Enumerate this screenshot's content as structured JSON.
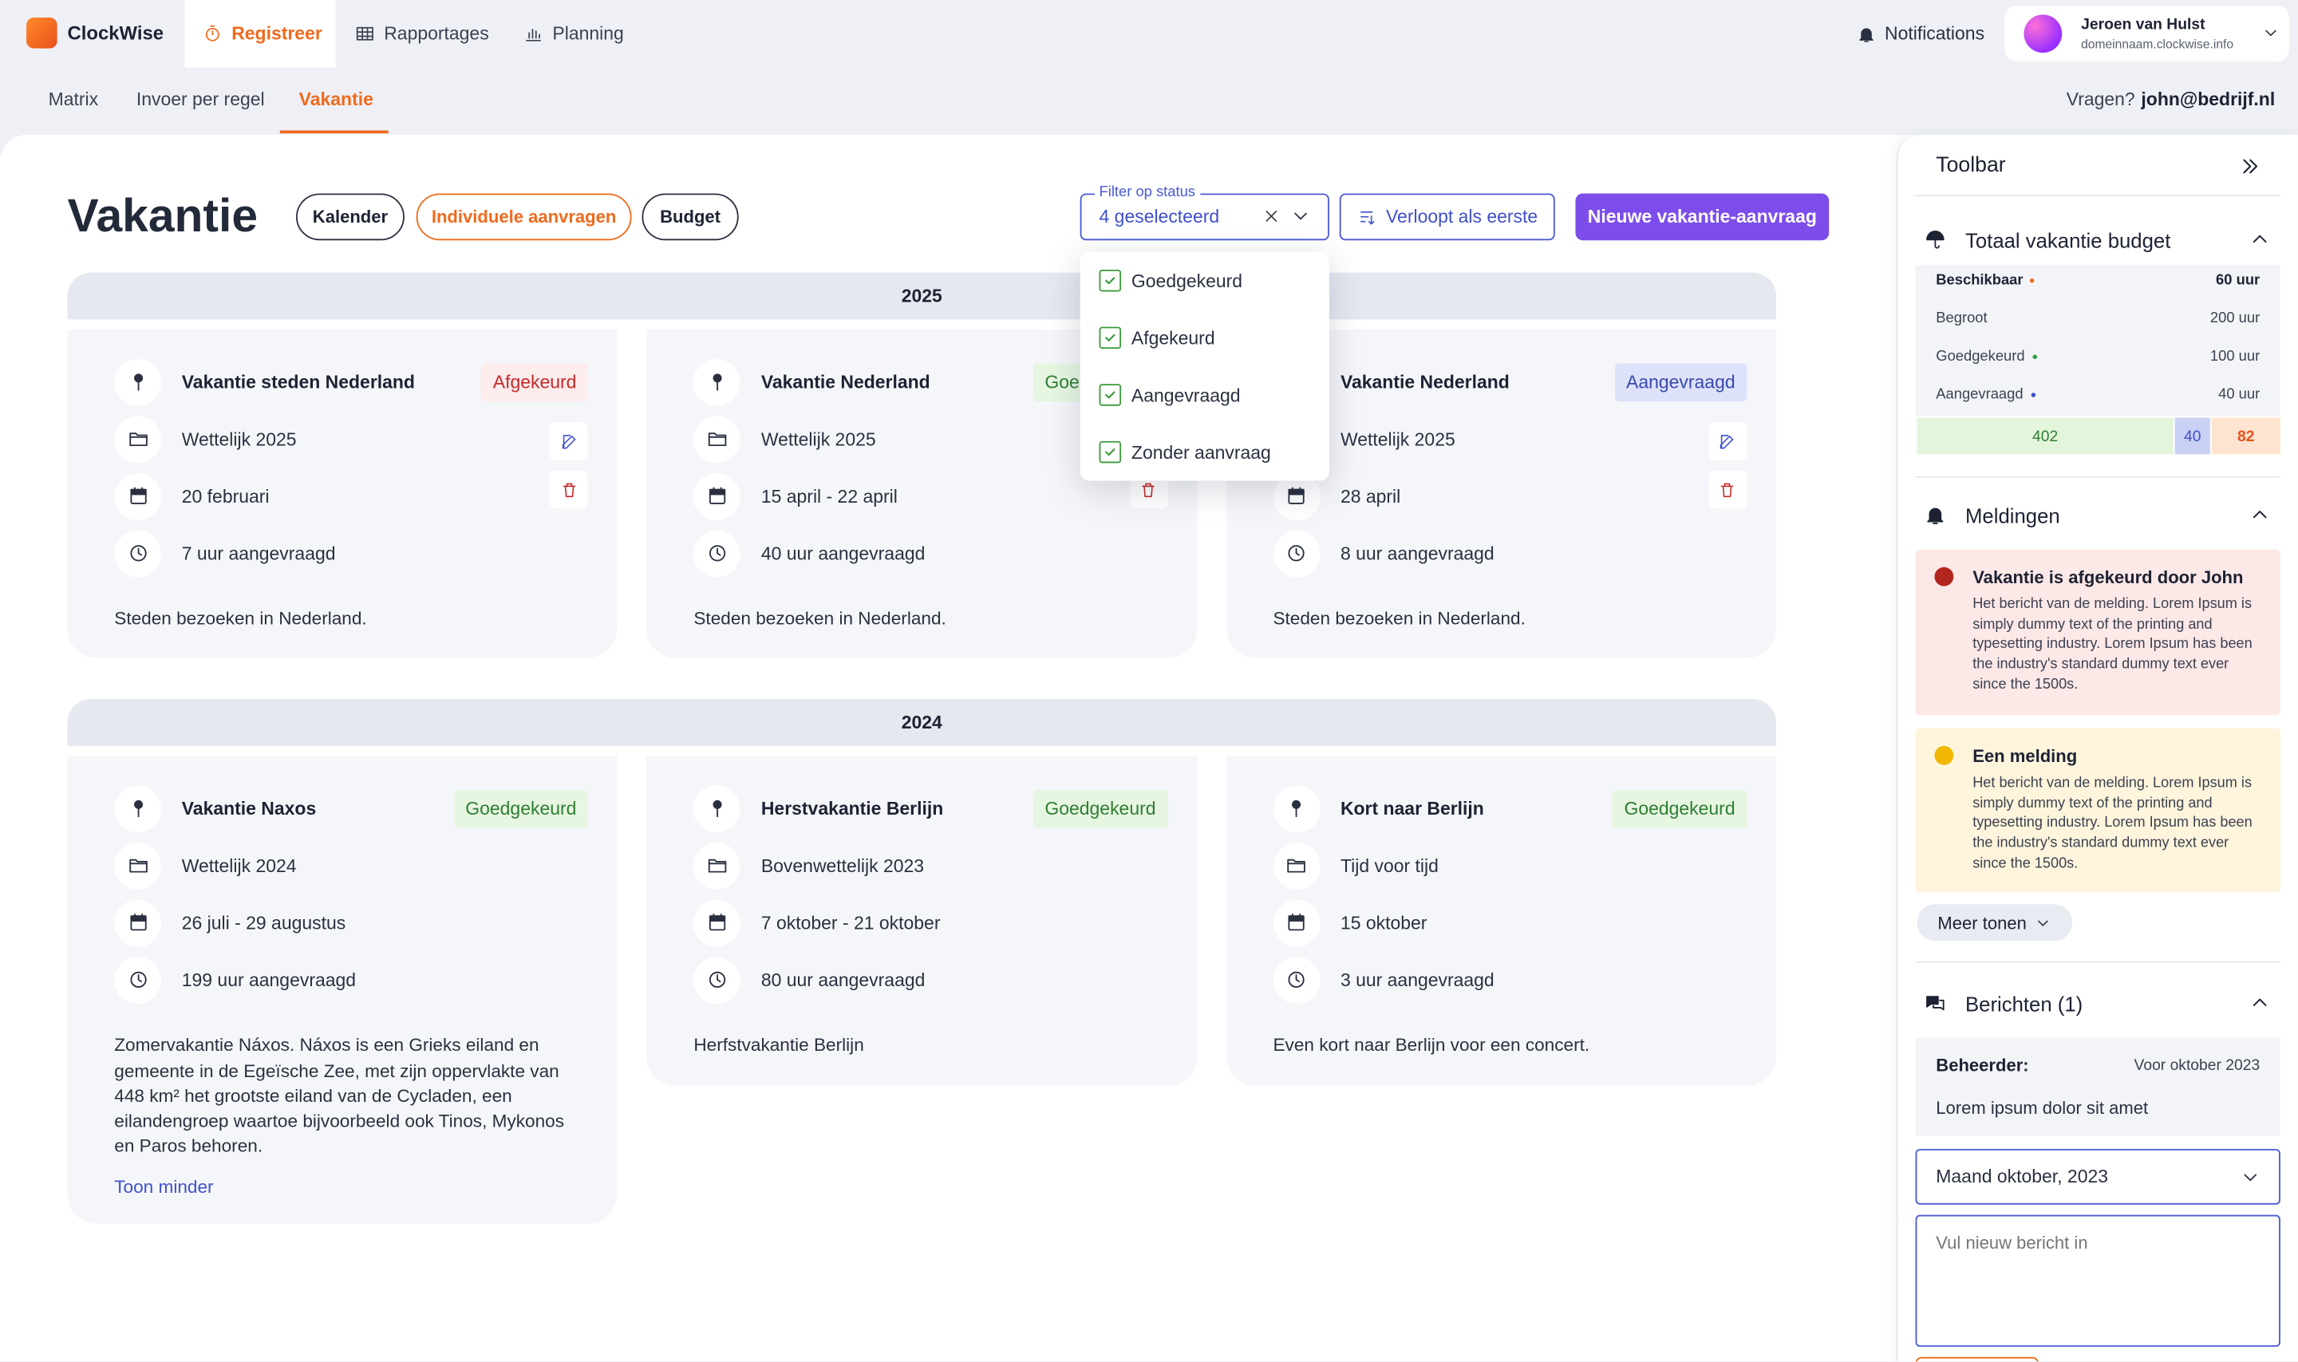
{
  "app": {
    "brand": "ClockWise",
    "nav": [
      "Registreer",
      "Rapportages",
      "Planning"
    ],
    "notifications": "Notifications",
    "user": {
      "name": "Jeroen van Hulst",
      "domain": "domeinnaam.clockwise.info"
    }
  },
  "subnav": {
    "tabs": [
      "Matrix",
      "Invoer per regel",
      "Vakantie"
    ],
    "question": "Vragen?",
    "email": "john@bedrijf.nl"
  },
  "page": {
    "title": "Vakantie",
    "views": [
      "Kalender",
      "Individuele aanvragen",
      "Budget"
    ],
    "filter": {
      "label": "Filter op status",
      "value": "4 geselecteerd",
      "options": [
        "Goedgekeurd",
        "Afgekeurd",
        "Aangevraagd",
        "Zonder aanvraag"
      ]
    },
    "sort": "Verloopt als eerste",
    "new_request": "Nieuwe vakantie-aanvraag"
  },
  "groups": [
    {
      "year": "2025",
      "cards": [
        {
          "title": "Vakantie steden Nederland",
          "status": "Afgekeurd",
          "status_color": "#c62828",
          "status_bg": "#fdecec",
          "category": "Wettelijk 2025",
          "date": "20 februari",
          "hours": "7 uur aangevraagd",
          "description": "Steden bezoeken in Nederland."
        },
        {
          "title": "Vakantie Nederland",
          "status": "Goedgekeurd",
          "status_color": "#2e7d32",
          "status_bg": "#e6f6e1",
          "category": "Wettelijk 2025",
          "date": "15 april - 22 april",
          "hours": "40 uur aangevraagd",
          "description": "Steden bezoeken in Nederland."
        },
        {
          "title": "Vakantie Nederland",
          "status": "Aangevraagd",
          "status_color": "#3949ab",
          "status_bg": "#dde2fa",
          "category": "Wettelijk 2025",
          "date": "28 april",
          "hours": "8 uur aangevraagd",
          "description": "Steden bezoeken in Nederland."
        }
      ]
    },
    {
      "year": "2024",
      "cards": [
        {
          "title": "Vakantie Naxos",
          "status": "Goedgekeurd",
          "status_color": "#2e7d32",
          "status_bg": "#e6f6e1",
          "category": "Wettelijk 2024",
          "date": "26 juli - 29 augustus",
          "hours": "199 uur aangevraagd",
          "description": "Zomervakantie Náxos. Náxos is een Grieks eiland en gemeente in de Egeïsche Zee, met zijn oppervlakte van 448 km² het grootste eiland van de Cycladen, een eilandengroep waartoe bijvoorbeeld ook Tinos, Mykonos en Paros behoren.",
          "link": "Toon minder"
        },
        {
          "title": "Herstvakantie  Berlijn",
          "status": "Goedgekeurd",
          "status_color": "#2e7d32",
          "status_bg": "#e6f6e1",
          "category": "Bovenwettelijk 2023",
          "date": "7 oktober - 21 oktober",
          "hours": "80 uur aangevraagd",
          "description": "Herfstvakantie Berlijn"
        },
        {
          "title": "Kort naar Berlijn",
          "status": "Goedgekeurd",
          "status_color": "#2e7d32",
          "status_bg": "#e6f6e1",
          "category": "Tijd voor tijd",
          "date": "15 oktober",
          "hours": "3 uur aangevraagd",
          "description": "Even kort naar Berlijn voor een concert."
        }
      ]
    }
  ],
  "toolbar": {
    "title": "Toolbar",
    "budget": {
      "title": "Totaal vakantie budget",
      "rows": [
        {
          "label": "Beschikbaar",
          "value": "60 uur",
          "dot": "#f06a1d"
        },
        {
          "label": "Begroot",
          "value": "200 uur"
        },
        {
          "label": "Goedgekeurd",
          "value": "100 uur",
          "dot": "#2e9d3a"
        },
        {
          "label": "Aangevraagd",
          "value": "40 uur",
          "dot": "#3f51c9"
        }
      ],
      "bar": [
        402,
        40,
        82
      ]
    },
    "notifications": {
      "title": "Meldingen",
      "items": [
        {
          "title": "Vakantie is afgekeurd door John",
          "body": "Het bericht van de melding. Lorem Ipsum is simply dummy text of the printing and typesetting industry. Lorem Ipsum has been the industry's standard dummy text ever since the 1500s.",
          "color": "#b3261e",
          "bg": "#fde8e8"
        },
        {
          "title": "Een melding",
          "body": "Het bericht van de melding. Lorem Ipsum is simply dummy text of the printing and typesetting industry. Lorem Ipsum has been the industry's standard dummy text ever since the 1500s.",
          "color": "#f2b705",
          "bg": "#fff5dc"
        }
      ],
      "more": "Meer tonen"
    },
    "messages": {
      "title": "Berichten (1)",
      "sender": "Beheerder:",
      "date": "Voor oktober 2023",
      "text": "Lorem ipsum dolor sit amet",
      "month": "Maand oktober, 2023",
      "placeholder": "Vul nieuw bericht in"
    }
  }
}
